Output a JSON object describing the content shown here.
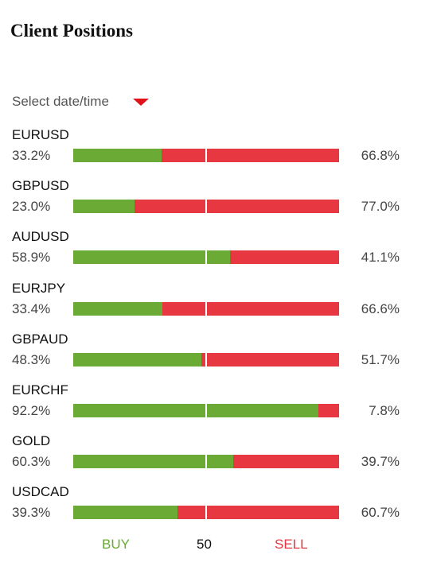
{
  "title": "Client Positions",
  "date_select": {
    "label": "Select date/time"
  },
  "colors": {
    "buy": "#6aaa35",
    "sell": "#e73842",
    "accent": "#e0121a"
  },
  "legend": {
    "buy": "BUY",
    "mid": "50",
    "sell": "SELL"
  },
  "chart_data": {
    "type": "bar",
    "orientation": "horizontal-stacked-100",
    "categories": [
      "EURUSD",
      "GBPUSD",
      "AUDUSD",
      "EURJPY",
      "GBPAUD",
      "EURCHF",
      "GOLD",
      "USDCAD"
    ],
    "series": [
      {
        "name": "BUY",
        "values": [
          33.2,
          23.0,
          58.9,
          33.4,
          48.3,
          92.2,
          60.3,
          39.3
        ]
      },
      {
        "name": "SELL",
        "values": [
          66.8,
          77.0,
          41.1,
          66.6,
          51.7,
          7.8,
          39.7,
          60.7
        ]
      }
    ],
    "buy_labels": [
      "33.2%",
      "23.0%",
      "58.9%",
      "33.4%",
      "48.3%",
      "92.2%",
      "60.3%",
      "39.3%"
    ],
    "sell_labels": [
      "66.8%",
      "77.0%",
      "41.1%",
      "66.6%",
      "51.7%",
      "7.8%",
      "39.7%",
      "60.7%"
    ],
    "xlim": [
      0,
      100
    ],
    "midline": 50
  }
}
